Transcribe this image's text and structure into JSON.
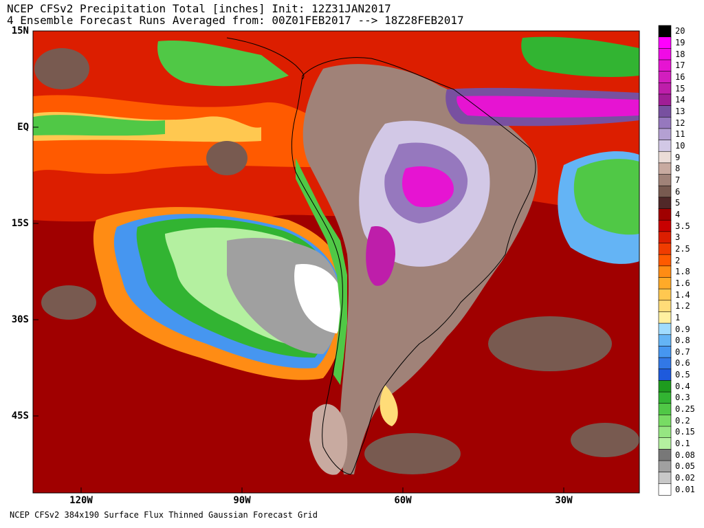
{
  "header": {
    "title_line1": "NCEP CFSv2 Precipitation Total [inches] Init: 12Z31JAN2017",
    "title_line2": "4 Ensemble Forecast Runs Averaged from: 00Z01FEB2017 --> 18Z28FEB2017"
  },
  "footer": {
    "source": "NCEP CFSv2 384x190 Surface Flux Thinned Gaussian Forecast Grid"
  },
  "axes": {
    "lat_labels": [
      "15N",
      "EQ",
      "15S",
      "30S",
      "45S"
    ],
    "lon_labels": [
      "120W",
      "90W",
      "60W",
      "30W"
    ]
  },
  "colorbar": {
    "levels": [
      "0.01",
      "0.02",
      "0.05",
      "0.08",
      "0.1",
      "0.15",
      "0.2",
      "0.25",
      "0.3",
      "0.4",
      "0.5",
      "0.6",
      "0.7",
      "0.8",
      "0.9",
      "1",
      "1.2",
      "1.4",
      "1.6",
      "1.8",
      "2",
      "2.5",
      "3",
      "3.5",
      "4",
      "5",
      "6",
      "7",
      "8",
      "9",
      "10",
      "11",
      "12",
      "13",
      "14",
      "15",
      "16",
      "17",
      "18",
      "19",
      "20"
    ],
    "colors": [
      "#ffffff",
      "#c8c8c8",
      "#a0a0a0",
      "#787878",
      "#b4f0a0",
      "#96e682",
      "#78dc64",
      "#50c846",
      "#32b432",
      "#1e9b1e",
      "#1e5adc",
      "#3278e6",
      "#4696f0",
      "#64b4f5",
      "#a0dcff",
      "#fff0a0",
      "#ffdc78",
      "#ffc850",
      "#ffaa28",
      "#ff8c14",
      "#ff5a00",
      "#f03c00",
      "#dc1e00",
      "#c80000",
      "#a00000",
      "#502828",
      "#785a50",
      "#a08278",
      "#c8aaa0",
      "#ebdcd7",
      "#d2c8e6",
      "#b4a0d2",
      "#9678be",
      "#7850a0",
      "#a01e96",
      "#be1eaa",
      "#d21ebe",
      "#e614d2",
      "#f00ae6",
      "#ff00ff"
    ]
  }
}
